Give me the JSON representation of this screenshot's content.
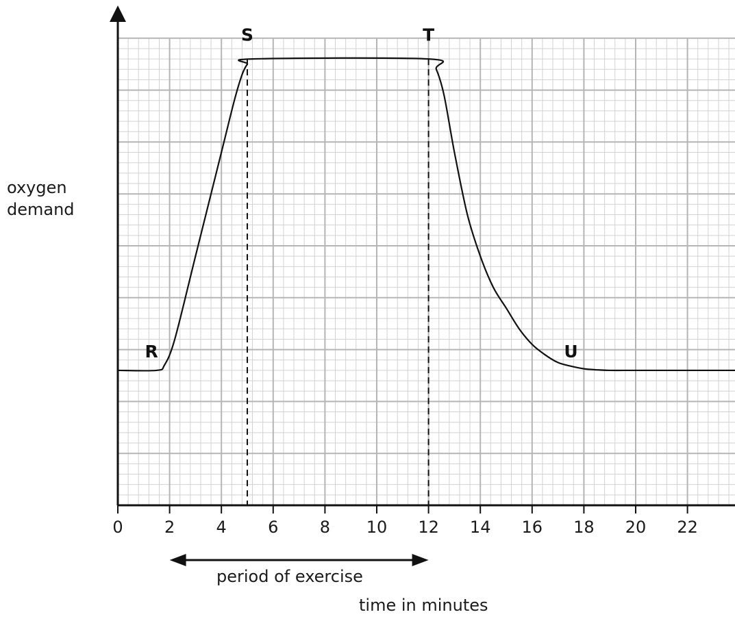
{
  "chart_data": {
    "type": "line",
    "title": "",
    "xlabel": "time in minutes",
    "ylabel_lines": [
      "oxygen",
      "demand"
    ],
    "xlim": [
      0,
      24
    ],
    "ylim": [
      0,
      10
    ],
    "x_ticks": [
      0,
      2,
      4,
      6,
      8,
      10,
      12,
      14,
      16,
      18,
      20,
      22
    ],
    "grid": true,
    "series": [
      {
        "x": [
          0,
          1.5,
          1.8,
          2.2,
          3,
          4,
          4.5,
          4.8,
          5.0,
          5.2,
          12.0,
          12.3,
          12.6,
          13,
          13.5,
          14,
          14.5,
          15,
          15.5,
          16,
          16.5,
          17,
          17.5,
          18,
          18.5,
          19,
          20,
          22,
          24
        ],
        "y": [
          2.6,
          2.6,
          2.7,
          3.2,
          4.8,
          6.8,
          7.8,
          8.3,
          8.5,
          8.6,
          8.6,
          8.4,
          7.9,
          6.8,
          5.6,
          4.8,
          4.2,
          3.8,
          3.4,
          3.1,
          2.9,
          2.75,
          2.68,
          2.63,
          2.61,
          2.6,
          2.6,
          2.6,
          2.6
        ]
      }
    ],
    "annotations": [
      {
        "label": "R",
        "x": 1.3,
        "y": 2.85
      },
      {
        "label": "S",
        "x": 5.0,
        "y": 8.95
      },
      {
        "label": "T",
        "x": 12.0,
        "y": 8.95
      },
      {
        "label": "U",
        "x": 17.5,
        "y": 2.85
      }
    ],
    "reference_lines": [
      {
        "x": 5.0,
        "style": "dashed"
      },
      {
        "x": 12.0,
        "style": "dashed"
      }
    ],
    "range_arrow": {
      "x_start": 2.0,
      "x_end": 12.0,
      "label": "period of exercise"
    }
  }
}
